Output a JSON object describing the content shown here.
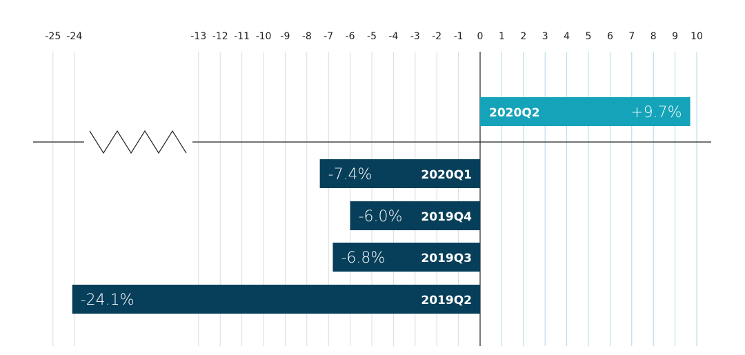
{
  "chart_data": {
    "type": "bar",
    "orientation": "horizontal",
    "title": "",
    "xlabel": "",
    "ylabel": "",
    "categories": [
      "2020Q2",
      "2020Q1",
      "2019Q4",
      "2019Q3",
      "2019Q2"
    ],
    "values": [
      9.7,
      -7.4,
      -6.0,
      -6.8,
      -24.1
    ],
    "value_labels": [
      "+9.7%",
      "-7.4%",
      "-6.0%",
      "-6.8%",
      "-24.1%"
    ],
    "x_ticks": [
      "-25",
      "-24",
      "-13",
      "-12",
      "-11",
      "-10",
      "-9",
      "-8",
      "-7",
      "-6",
      "-5",
      "-4",
      "-3",
      "-2",
      "-1",
      "0",
      "1",
      "2",
      "3",
      "4",
      "5",
      "6",
      "7",
      "8",
      "9",
      "10"
    ],
    "x_tick_values": [
      -25,
      -24,
      -13,
      -12,
      -11,
      -10,
      -9,
      -8,
      -7,
      -6,
      -5,
      -4,
      -3,
      -2,
      -1,
      0,
      1,
      2,
      3,
      4,
      5,
      6,
      7,
      8,
      9,
      10
    ],
    "axis_break": [
      -24,
      -13
    ],
    "xlim": [
      -25,
      10
    ],
    "grid": true,
    "legend": "none",
    "colors": {
      "positive": "#14a3b8",
      "negative": "#073f5a",
      "grid_negative": "#d6dde0",
      "grid_positive": "#a9dce4",
      "axis": "#222222"
    }
  }
}
